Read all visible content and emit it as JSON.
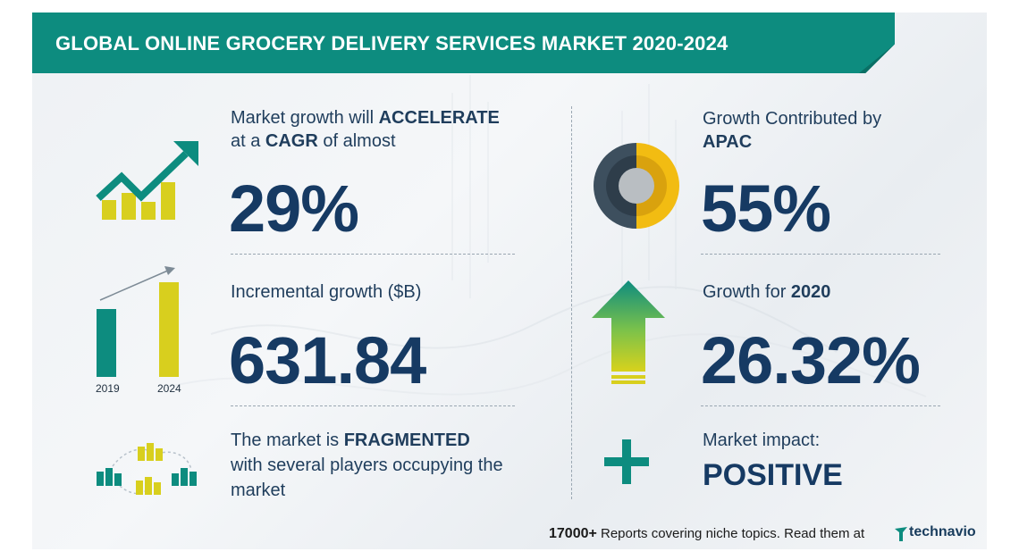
{
  "title": "GLOBAL ONLINE GROCERY DELIVERY SERVICES MARKET 2020-2024",
  "growth": {
    "line1_pre": "Market growth will ",
    "line1_bold": "ACCELERATE",
    "line2_pre": "at a ",
    "line2_bold": "CAGR",
    "line2_post": "  of almost",
    "value": "29%"
  },
  "incremental": {
    "label": "Incremental growth ($B)",
    "value": "631.84",
    "year_start": "2019",
    "year_end": "2024"
  },
  "market": {
    "line1_pre": "The market is ",
    "line1_bold": "FRAGMENTED",
    "line2": "with several players occupying the",
    "line3": "market"
  },
  "apac": {
    "line1": "Growth Contributed by",
    "line2_bold": "APAC",
    "value": "55%"
  },
  "growth2020": {
    "label_pre": "Growth for  ",
    "label_bold": "2020",
    "value": "26.32%"
  },
  "impact": {
    "label": "Market impact:",
    "value": "POSITIVE"
  },
  "footer": {
    "count": "17000+",
    "text": " Reports covering niche topics. Read them at",
    "brand": "technavio"
  },
  "colors": {
    "teal": "#0d8c7f",
    "navy": "#163a63",
    "yellow": "#d8cf1e",
    "gold": "#f2bc12",
    "slate": "#3d4f5e"
  },
  "icons": [
    "trend-arrow-icon",
    "bar-growth-icon",
    "buildings-network-icon",
    "donut-icon",
    "up-arrow-icon",
    "plus-icon"
  ]
}
